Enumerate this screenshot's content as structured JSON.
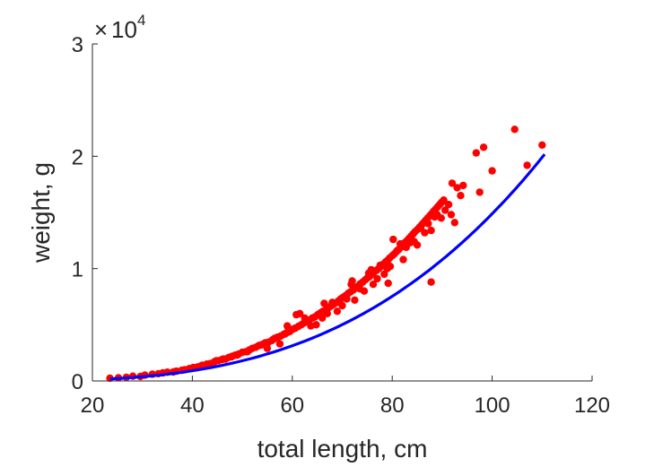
{
  "chart_data": {
    "type": "scatter",
    "xlabel": "total length, cm",
    "ylabel": "weight, g",
    "xlim": [
      20,
      120
    ],
    "ylim": [
      0,
      30000
    ],
    "x_ticks": [
      "20",
      "40",
      "60",
      "80",
      "100",
      "120"
    ],
    "y_ticks": [
      "0",
      "1",
      "2",
      "3"
    ],
    "y_exponent": {
      "times": "×",
      "base": "10",
      "power": "4"
    },
    "grid": false,
    "colors": {
      "points": "#ff0000",
      "fit_line": "#0000ff",
      "axes": "#262626"
    },
    "series": [
      {
        "type": "scatter",
        "points": [
          [
            23.5,
            250
          ],
          [
            25.2,
            280
          ],
          [
            26.8,
            330
          ],
          [
            28.1,
            420
          ],
          [
            29.6,
            400
          ],
          [
            30.5,
            520
          ],
          [
            32.0,
            600
          ],
          [
            33.2,
            650
          ],
          [
            34.1,
            720
          ],
          [
            35.0,
            780
          ],
          [
            36.2,
            800
          ],
          [
            36.8,
            870
          ],
          [
            37.9,
            950
          ],
          [
            38.5,
            1000
          ],
          [
            39.4,
            1100
          ],
          [
            40.2,
            1200
          ],
          [
            41.1,
            1250
          ],
          [
            42.0,
            1400
          ],
          [
            42.9,
            1500
          ],
          [
            43.6,
            1550
          ],
          [
            44.4,
            1700
          ],
          [
            45.2,
            1800
          ],
          [
            45.9,
            1900
          ],
          [
            46.6,
            1950
          ],
          [
            47.3,
            2100
          ],
          [
            48.0,
            2200
          ],
          [
            48.6,
            2300
          ],
          [
            49.3,
            2400
          ],
          [
            50.0,
            2550
          ],
          [
            50.7,
            2600
          ],
          [
            51.4,
            2750
          ],
          [
            52.0,
            2900
          ],
          [
            52.7,
            3000
          ],
          [
            53.3,
            3150
          ],
          [
            54.0,
            3250
          ],
          [
            54.6,
            3400
          ],
          [
            55.2,
            3450
          ],
          [
            55.9,
            3600
          ],
          [
            56.5,
            3800
          ],
          [
            57.1,
            3900
          ],
          [
            57.7,
            4000
          ],
          [
            58.3,
            4150
          ],
          [
            58.9,
            4300
          ],
          [
            59.5,
            4400
          ],
          [
            60.1,
            4600
          ],
          [
            60.6,
            4700
          ],
          [
            61.2,
            4850
          ],
          [
            61.8,
            5000
          ],
          [
            62.3,
            5150
          ],
          [
            62.9,
            5300
          ],
          [
            63.4,
            5400
          ],
          [
            64.0,
            5600
          ],
          [
            64.5,
            5700
          ],
          [
            65.1,
            5900
          ],
          [
            65.6,
            6050
          ],
          [
            66.1,
            6200
          ],
          [
            66.7,
            6300
          ],
          [
            67.2,
            6500
          ],
          [
            67.7,
            6650
          ],
          [
            68.2,
            6800
          ],
          [
            68.7,
            6950
          ],
          [
            69.2,
            7100
          ],
          [
            69.7,
            7300
          ],
          [
            70.2,
            7450
          ],
          [
            70.7,
            7600
          ],
          [
            71.2,
            7800
          ],
          [
            71.7,
            7950
          ],
          [
            72.2,
            8100
          ],
          [
            72.7,
            8300
          ],
          [
            73.2,
            8450
          ],
          [
            73.6,
            8650
          ],
          [
            74.1,
            8800
          ],
          [
            74.6,
            9000
          ],
          [
            75.0,
            9150
          ],
          [
            75.5,
            9300
          ],
          [
            76.0,
            9500
          ],
          [
            76.4,
            9700
          ],
          [
            76.9,
            9850
          ],
          [
            77.3,
            10000
          ],
          [
            77.8,
            10200
          ],
          [
            78.2,
            10400
          ],
          [
            78.7,
            10600
          ],
          [
            79.1,
            10750
          ],
          [
            79.5,
            10950
          ],
          [
            80.0,
            11150
          ],
          [
            80.4,
            11300
          ],
          [
            80.8,
            11500
          ],
          [
            81.3,
            11700
          ],
          [
            81.7,
            11900
          ],
          [
            82.1,
            12100
          ],
          [
            82.5,
            12300
          ],
          [
            83.0,
            12500
          ],
          [
            83.4,
            12700
          ],
          [
            83.8,
            12900
          ],
          [
            84.2,
            13100
          ],
          [
            84.6,
            13300
          ],
          [
            85.1,
            13500
          ],
          [
            85.5,
            13700
          ],
          [
            85.9,
            13900
          ],
          [
            86.3,
            14100
          ],
          [
            86.7,
            14300
          ],
          [
            87.1,
            14500
          ],
          [
            87.5,
            14700
          ],
          [
            87.9,
            14900
          ],
          [
            88.3,
            15100
          ],
          [
            88.7,
            15300
          ],
          [
            89.1,
            15500
          ],
          [
            89.5,
            15700
          ],
          [
            89.9,
            15900
          ],
          [
            90.3,
            16100
          ],
          [
            55.0,
            2900
          ],
          [
            57.5,
            3300
          ],
          [
            59.0,
            4900
          ],
          [
            60.8,
            5900
          ],
          [
            61.5,
            6000
          ],
          [
            62.5,
            5600
          ],
          [
            63.7,
            4900
          ],
          [
            64.8,
            5000
          ],
          [
            66.0,
            5600
          ],
          [
            67.0,
            6000
          ],
          [
            68.0,
            7000
          ],
          [
            69.0,
            6200
          ],
          [
            70.0,
            6700
          ],
          [
            70.9,
            7300
          ],
          [
            71.8,
            8600
          ],
          [
            72.5,
            7200
          ],
          [
            73.5,
            8200
          ],
          [
            74.4,
            8000
          ],
          [
            75.3,
            9600
          ],
          [
            76.2,
            8600
          ],
          [
            77.0,
            9100
          ],
          [
            77.6,
            10300
          ],
          [
            78.4,
            9500
          ],
          [
            79.0,
            10000
          ],
          [
            79.6,
            10200
          ],
          [
            80.2,
            12600
          ],
          [
            81.0,
            11600
          ],
          [
            81.6,
            12200
          ],
          [
            82.2,
            10800
          ],
          [
            82.8,
            11900
          ],
          [
            83.6,
            12300
          ],
          [
            84.4,
            12400
          ],
          [
            85.0,
            12100
          ],
          [
            85.7,
            13600
          ],
          [
            86.5,
            13200
          ],
          [
            87.2,
            14000
          ],
          [
            87.8,
            13400
          ],
          [
            88.5,
            14600
          ],
          [
            89.0,
            14800
          ],
          [
            89.8,
            14500
          ],
          [
            90.6,
            15200
          ],
          [
            91.3,
            15700
          ],
          [
            92.0,
            17600
          ],
          [
            92.5,
            14100
          ],
          [
            93.0,
            17200
          ],
          [
            94.2,
            17400
          ],
          [
            96.8,
            20300
          ],
          [
            98.3,
            20800
          ],
          [
            100.0,
            18700
          ],
          [
            97.5,
            16800
          ],
          [
            104.5,
            22400
          ],
          [
            107.0,
            19200
          ],
          [
            110.0,
            21000
          ],
          [
            87.8,
            8800
          ],
          [
            91.8,
            14800
          ],
          [
            93.7,
            16500
          ],
          [
            75.8,
            9900
          ],
          [
            79.2,
            8700
          ],
          [
            72.0,
            8900
          ],
          [
            66.4,
            6900
          ],
          [
            58.6,
            4200
          ],
          [
            56.2,
            3700
          ],
          [
            53.8,
            3200
          ],
          [
            51.0,
            2600
          ],
          [
            49.0,
            2300
          ],
          [
            47.8,
            2150
          ],
          [
            46.2,
            1950
          ],
          [
            44.8,
            1800
          ],
          [
            43.2,
            1450
          ],
          [
            41.8,
            1350
          ]
        ]
      },
      {
        "type": "line",
        "fit": {
          "a": 0.01182,
          "b": 3.05
        },
        "x_range": [
          23.5,
          110.5
        ]
      }
    ]
  }
}
